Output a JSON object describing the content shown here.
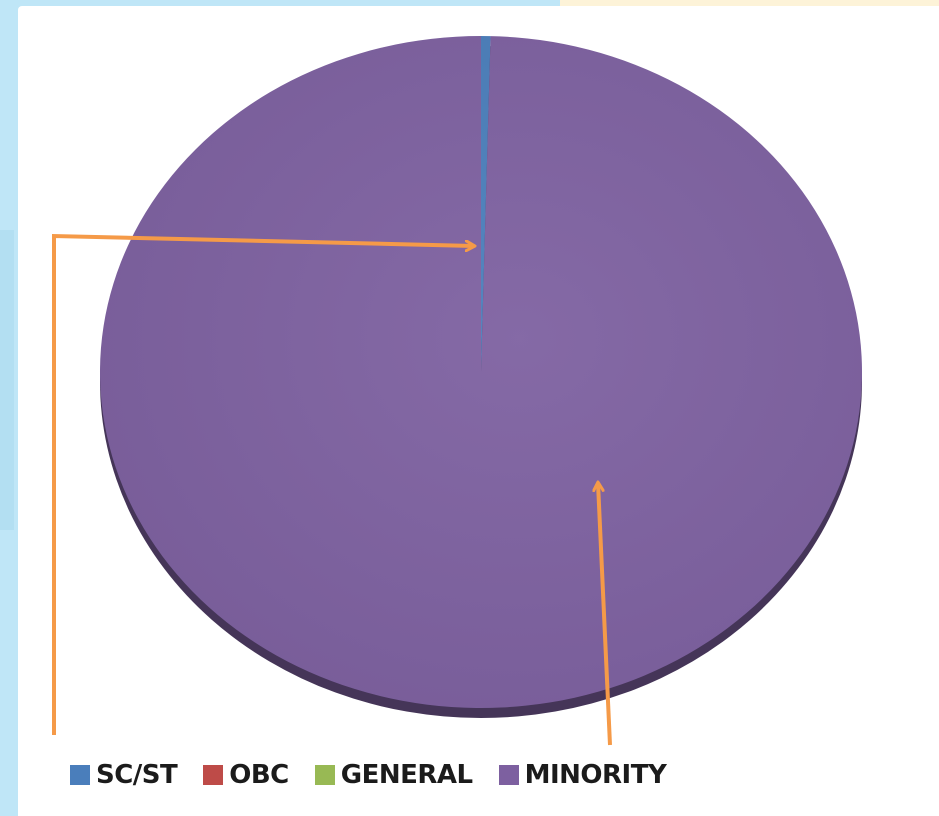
{
  "chart_data": {
    "type": "pie",
    "title": "",
    "categories": [
      "SC/ST",
      "OBC",
      "GENERAL",
      "MINORITY"
    ],
    "values": [
      0.4,
      0,
      0,
      99.6
    ],
    "colors": [
      "#4a7ebb",
      "#be4b48",
      "#98b954",
      "#7d60a0"
    ],
    "legend_position": "bottom",
    "three_d": true
  },
  "legend": {
    "items": [
      {
        "label": "SC/ST",
        "color": "#4a7ebb"
      },
      {
        "label": "OBC",
        "color": "#be4b48"
      },
      {
        "label": "GENERAL",
        "color": "#98b954"
      },
      {
        "label": "MINORITY",
        "color": "#7d60a0"
      }
    ]
  },
  "annotations": {
    "arrow_color": "#f59a48"
  }
}
